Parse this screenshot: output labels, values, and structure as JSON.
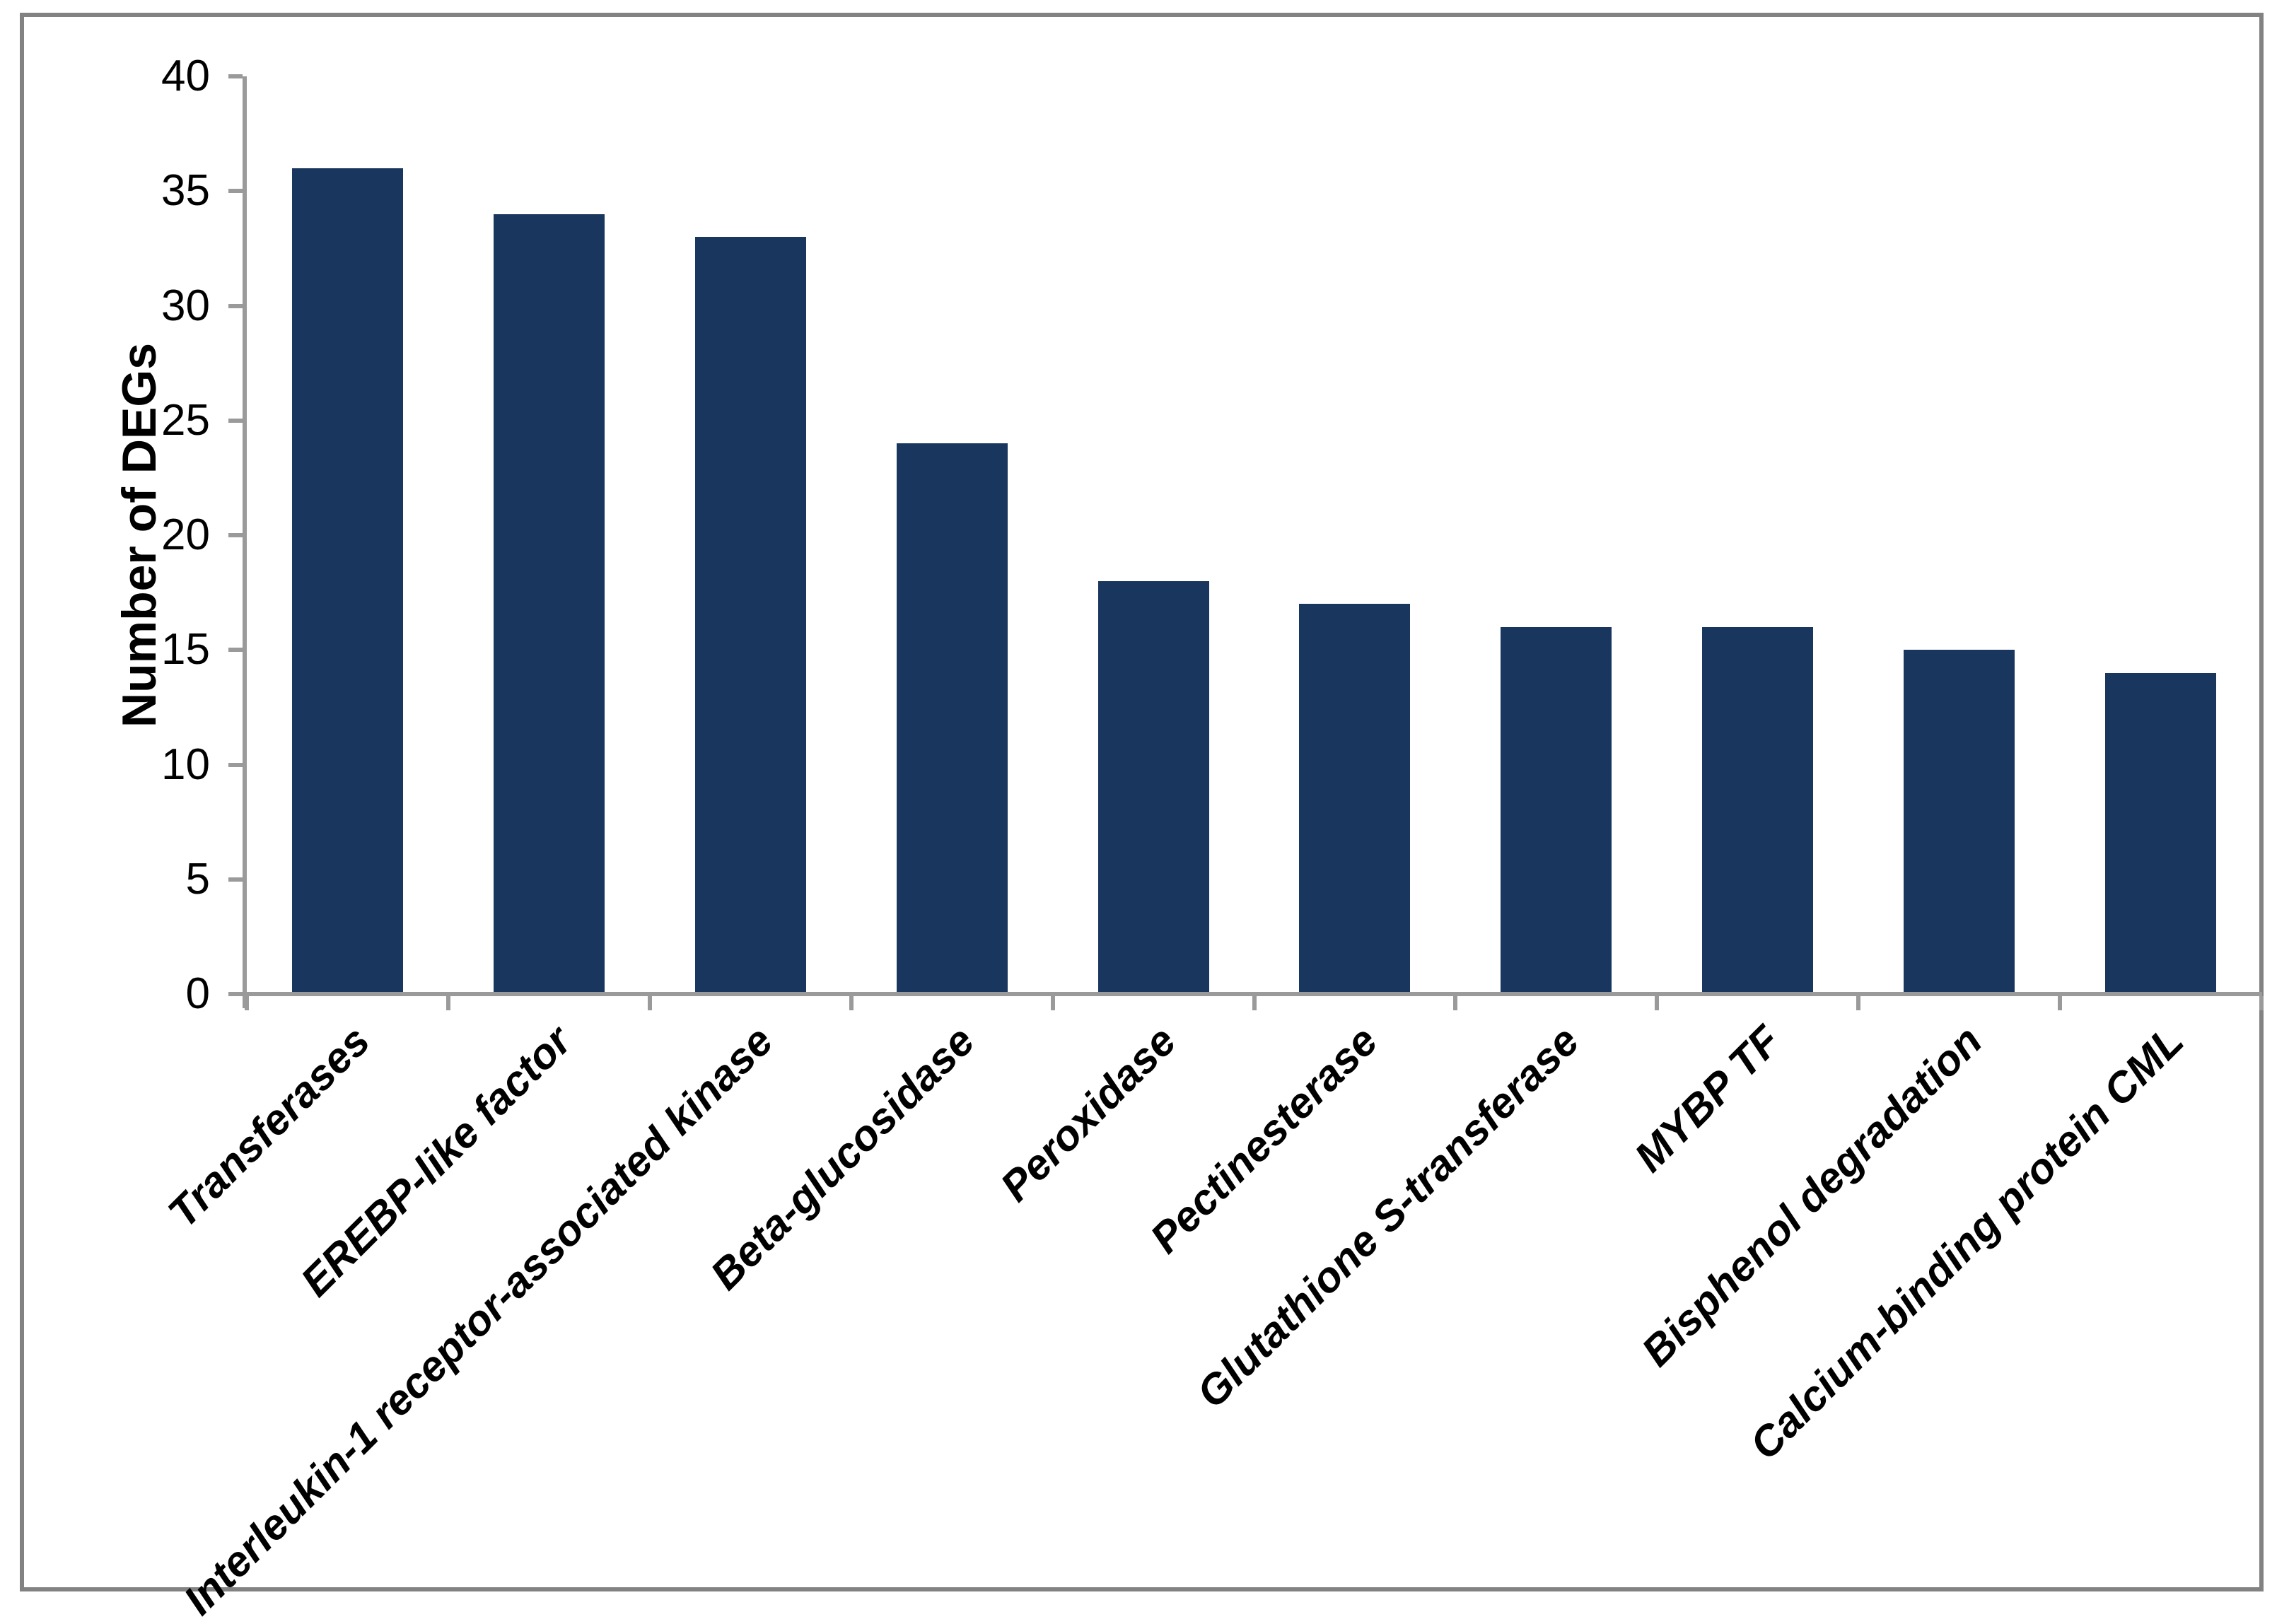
{
  "chart_data": {
    "type": "bar",
    "title": "",
    "xlabel": "",
    "ylabel": "Number of DEGs",
    "categories": [
      "Transferases",
      "EREBP-like factor",
      "Interleukin-1 receptor-associated kinase",
      "Beta-glucosidase",
      "Peroxidase",
      "Pectinesterase",
      "Glutathione S-transferase",
      "MYBP TF",
      "Bisphenol degradation",
      "Calcium-binding protein CML"
    ],
    "values": [
      36,
      34,
      33,
      24,
      18,
      17,
      16,
      16,
      15,
      14
    ],
    "ylim": [
      0,
      40
    ],
    "yticks": [
      0,
      5,
      10,
      15,
      20,
      25,
      30,
      35,
      40
    ],
    "grid": false,
    "legend": "none",
    "colors": {
      "bar": "#18365E",
      "axis": "#9A9A9A",
      "frame": "#828282",
      "text": "#000000"
    }
  }
}
